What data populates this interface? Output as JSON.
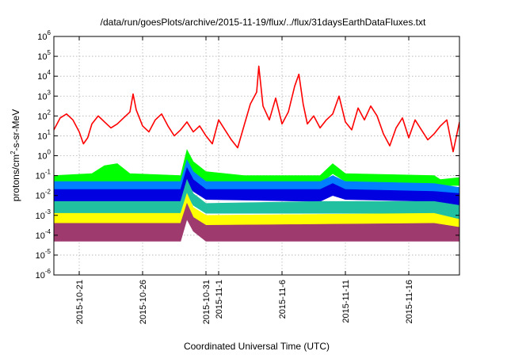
{
  "chart_data": {
    "type": "line",
    "title": "/data/run/goesPlots/archive/2015-11-19/flux/../flux/31daysEarthDataFluxes.txt",
    "xlabel": "Coordinated Universal Time (UTC)",
    "ylabel": {
      "base": "protons/cm",
      "sup": "2",
      "rest": "-s-sr-MeV"
    },
    "y_scale": "log",
    "ylim": [
      -6,
      6
    ],
    "y_ticks": [
      {
        "base": "10",
        "exp": "-6",
        "value": -6
      },
      {
        "base": "10",
        "exp": "-5",
        "value": -5
      },
      {
        "base": "10",
        "exp": "-4",
        "value": -4
      },
      {
        "base": "10",
        "exp": "-3",
        "value": -3
      },
      {
        "base": "10",
        "exp": "-2",
        "value": -2
      },
      {
        "base": "10",
        "exp": "-1",
        "value": -1
      },
      {
        "base": "10",
        "exp": "0",
        "value": 0
      },
      {
        "base": "10",
        "exp": "1",
        "value": 1
      },
      {
        "base": "10",
        "exp": "2",
        "value": 2
      },
      {
        "base": "10",
        "exp": "3",
        "value": 3
      },
      {
        "base": "10",
        "exp": "4",
        "value": 4
      },
      {
        "base": "10",
        "exp": "5",
        "value": 5
      },
      {
        "base": "10",
        "exp": "6",
        "value": 6
      }
    ],
    "xlim": [
      "2015-10-19",
      "2015-11-20"
    ],
    "x_ticks": [
      {
        "label": "2015-10-21",
        "date": "2015-10-21"
      },
      {
        "label": "2015-10-26",
        "date": "2015-10-26"
      },
      {
        "label": "2015-10-31",
        "date": "2015-10-31"
      },
      {
        "label": "2015-11-1",
        "date": "2015-11-01"
      },
      {
        "label": "2015-11-6",
        "date": "2015-11-06"
      },
      {
        "label": "2015-11-11",
        "date": "2015-11-11"
      },
      {
        "label": "2015-11-16",
        "date": "2015-11-16"
      }
    ],
    "grid": true,
    "series": [
      {
        "color": "#ff0000",
        "style": "line",
        "points": [
          [
            "2015-10-19 00:00",
            1.3
          ],
          [
            "2015-10-19 12:00",
            1.9
          ],
          [
            "2015-10-20 00:00",
            2.1
          ],
          [
            "2015-10-20 12:00",
            1.8
          ],
          [
            "2015-10-21 00:00",
            1.2
          ],
          [
            "2015-10-21 08:00",
            0.6
          ],
          [
            "2015-10-21 16:00",
            0.9
          ],
          [
            "2015-10-22 00:00",
            1.6
          ],
          [
            "2015-10-22 12:00",
            2.0
          ],
          [
            "2015-10-23 00:00",
            1.7
          ],
          [
            "2015-10-23 12:00",
            1.4
          ],
          [
            "2015-10-24 00:00",
            1.6
          ],
          [
            "2015-10-24 12:00",
            1.9
          ],
          [
            "2015-10-25 00:00",
            2.2
          ],
          [
            "2015-10-25 06:00",
            3.1
          ],
          [
            "2015-10-25 12:00",
            2.3
          ],
          [
            "2015-10-26 00:00",
            1.5
          ],
          [
            "2015-10-26 12:00",
            1.2
          ],
          [
            "2015-10-27 00:00",
            1.8
          ],
          [
            "2015-10-27 12:00",
            2.1
          ],
          [
            "2015-10-28 00:00",
            1.5
          ],
          [
            "2015-10-28 12:00",
            1.0
          ],
          [
            "2015-10-29 00:00",
            1.3
          ],
          [
            "2015-10-29 12:00",
            1.7
          ],
          [
            "2015-10-30 00:00",
            1.2
          ],
          [
            "2015-10-30 12:00",
            1.5
          ],
          [
            "2015-10-31 00:00",
            1.0
          ],
          [
            "2015-10-31 12:00",
            0.6
          ],
          [
            "2015-11-01 00:00",
            1.8
          ],
          [
            "2015-11-01 12:00",
            1.3
          ],
          [
            "2015-11-02 00:00",
            0.8
          ],
          [
            "2015-11-02 12:00",
            0.4
          ],
          [
            "2015-11-03 00:00",
            1.5
          ],
          [
            "2015-11-03 12:00",
            2.6
          ],
          [
            "2015-11-04 00:00",
            3.2
          ],
          [
            "2015-11-04 04:00",
            4.5
          ],
          [
            "2015-11-04 12:00",
            2.5
          ],
          [
            "2015-11-05 00:00",
            1.8
          ],
          [
            "2015-11-05 12:00",
            2.9
          ],
          [
            "2015-11-06 00:00",
            1.6
          ],
          [
            "2015-11-06 12:00",
            2.2
          ],
          [
            "2015-11-07 00:00",
            3.5
          ],
          [
            "2015-11-07 08:00",
            4.1
          ],
          [
            "2015-11-07 16:00",
            2.6
          ],
          [
            "2015-11-08 00:00",
            1.6
          ],
          [
            "2015-11-08 12:00",
            2.0
          ],
          [
            "2015-11-09 00:00",
            1.4
          ],
          [
            "2015-11-09 12:00",
            1.8
          ],
          [
            "2015-11-10 00:00",
            2.1
          ],
          [
            "2015-11-10 12:00",
            3.0
          ],
          [
            "2015-11-11 00:00",
            1.7
          ],
          [
            "2015-11-11 12:00",
            1.3
          ],
          [
            "2015-11-12 00:00",
            2.4
          ],
          [
            "2015-11-12 12:00",
            1.8
          ],
          [
            "2015-11-13 00:00",
            2.5
          ],
          [
            "2015-11-13 12:00",
            2.0
          ],
          [
            "2015-11-14 00:00",
            1.1
          ],
          [
            "2015-11-14 12:00",
            0.5
          ],
          [
            "2015-11-15 00:00",
            1.4
          ],
          [
            "2015-11-15 12:00",
            1.9
          ],
          [
            "2015-11-16 00:00",
            0.9
          ],
          [
            "2015-11-16 12:00",
            1.8
          ],
          [
            "2015-11-17 00:00",
            1.3
          ],
          [
            "2015-11-17 12:00",
            0.8
          ],
          [
            "2015-11-18 00:00",
            1.1
          ],
          [
            "2015-11-18 12:00",
            1.5
          ],
          [
            "2015-11-19 00:00",
            1.8
          ],
          [
            "2015-11-19 12:00",
            0.2
          ],
          [
            "2015-11-20 00:00",
            1.7
          ]
        ]
      },
      {
        "color": "#00ff00",
        "style": "band",
        "points": [
          [
            "2015-10-19 00:00",
            -1.4,
            -1.0
          ],
          [
            "2015-10-22 00:00",
            -1.4,
            -0.9
          ],
          [
            "2015-10-23 00:00",
            -1.3,
            -0.5
          ],
          [
            "2015-10-24 00:00",
            -1.3,
            -0.4
          ],
          [
            "2015-10-25 00:00",
            -1.4,
            -0.9
          ],
          [
            "2015-10-29 00:00",
            -1.4,
            -1.0
          ],
          [
            "2015-10-29 12:00",
            -0.5,
            0.3
          ],
          [
            "2015-10-30 00:00",
            -0.9,
            -0.3
          ],
          [
            "2015-10-31 00:00",
            -1.3,
            -0.8
          ],
          [
            "2015-11-03 00:00",
            -1.4,
            -1.0
          ],
          [
            "2015-11-09 00:00",
            -1.4,
            -1.0
          ],
          [
            "2015-11-10 00:00",
            -0.9,
            -0.4
          ],
          [
            "2015-11-11 00:00",
            -1.3,
            -0.9
          ],
          [
            "2015-11-18 00:00",
            -1.4,
            -1.0
          ],
          [
            "2015-11-18 12:00",
            -1.5,
            -1.2
          ],
          [
            "2015-11-20 00:00",
            -1.5,
            -1.1
          ]
        ]
      },
      {
        "color": "#0080ff",
        "style": "band",
        "points": [
          [
            "2015-10-19 00:00",
            -2.0,
            -1.3
          ],
          [
            "2015-10-29 00:00",
            -2.0,
            -1.3
          ],
          [
            "2015-10-29 12:00",
            -1.0,
            -0.2
          ],
          [
            "2015-10-30 00:00",
            -1.4,
            -0.8
          ],
          [
            "2015-10-31 00:00",
            -1.9,
            -1.3
          ],
          [
            "2015-11-09 00:00",
            -2.0,
            -1.3
          ],
          [
            "2015-11-10 00:00",
            -1.6,
            -1.0
          ],
          [
            "2015-11-11 00:00",
            -1.9,
            -1.3
          ],
          [
            "2015-11-18 00:00",
            -2.0,
            -1.4
          ],
          [
            "2015-11-20 00:00",
            -2.3,
            -1.6
          ]
        ]
      },
      {
        "color": "#0000e0",
        "style": "band",
        "points": [
          [
            "2015-10-19 00:00",
            -2.3,
            -1.7
          ],
          [
            "2015-10-29 00:00",
            -2.3,
            -1.7
          ],
          [
            "2015-10-29 12:00",
            -1.4,
            -0.6
          ],
          [
            "2015-10-30 00:00",
            -1.8,
            -1.2
          ],
          [
            "2015-10-31 00:00",
            -2.2,
            -1.7
          ],
          [
            "2015-11-09 00:00",
            -2.3,
            -1.7
          ],
          [
            "2015-11-10 00:00",
            -2.0,
            -1.4
          ],
          [
            "2015-11-11 00:00",
            -2.2,
            -1.7
          ],
          [
            "2015-11-18 00:00",
            -2.3,
            -1.8
          ],
          [
            "2015-11-20 00:00",
            -2.6,
            -1.9
          ]
        ]
      },
      {
        "color": "#20c0a0",
        "style": "band",
        "points": [
          [
            "2015-10-19 00:00",
            -2.9,
            -2.3
          ],
          [
            "2015-10-29 00:00",
            -2.9,
            -2.3
          ],
          [
            "2015-10-29 12:00",
            -2.0,
            -1.2
          ],
          [
            "2015-10-30 00:00",
            -2.5,
            -1.9
          ],
          [
            "2015-10-31 00:00",
            -2.9,
            -2.4
          ],
          [
            "2015-11-09 00:00",
            -2.9,
            -2.3
          ],
          [
            "2015-11-18 00:00",
            -2.9,
            -2.3
          ],
          [
            "2015-11-20 00:00",
            -3.2,
            -2.5
          ]
        ]
      },
      {
        "color": "#ffff00",
        "style": "band",
        "points": [
          [
            "2015-10-19 00:00",
            -3.5,
            -2.9
          ],
          [
            "2015-10-29 00:00",
            -3.5,
            -2.9
          ],
          [
            "2015-10-29 12:00",
            -2.6,
            -1.9
          ],
          [
            "2015-10-30 00:00",
            -3.1,
            -2.6
          ],
          [
            "2015-10-31 00:00",
            -3.5,
            -3.0
          ],
          [
            "2015-11-18 00:00",
            -3.5,
            -2.9
          ],
          [
            "2015-11-20 00:00",
            -3.9,
            -3.2
          ]
        ]
      },
      {
        "color": "#9e3a6e",
        "style": "band",
        "points": [
          [
            "2015-10-19 00:00",
            -4.3,
            -3.4
          ],
          [
            "2015-10-29 00:00",
            -4.3,
            -3.4
          ],
          [
            "2015-10-29 12:00",
            -3.2,
            -2.4
          ],
          [
            "2015-10-30 00:00",
            -3.8,
            -3.1
          ],
          [
            "2015-10-31 00:00",
            -4.3,
            -3.5
          ],
          [
            "2015-11-18 00:00",
            -4.3,
            -3.4
          ],
          [
            "2015-11-20 00:00",
            -4.3,
            -3.6
          ]
        ]
      }
    ]
  }
}
